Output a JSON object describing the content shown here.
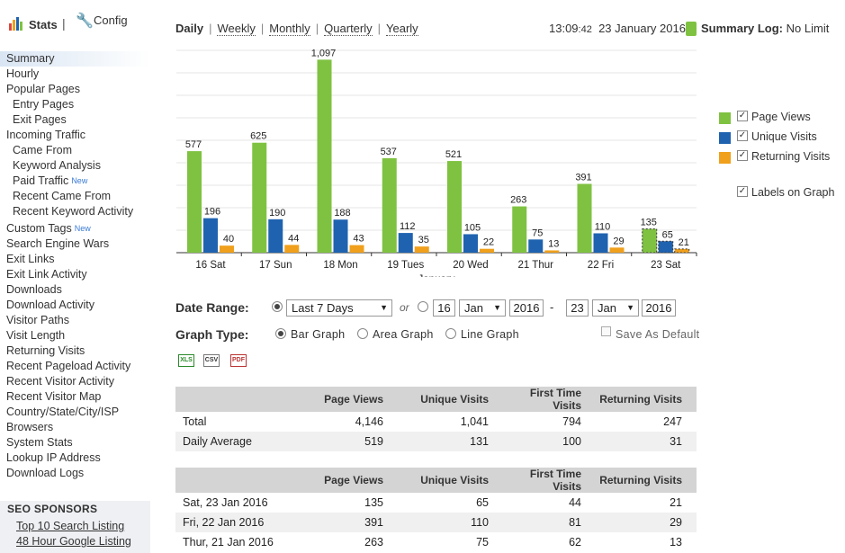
{
  "topbar": {
    "stats_label": "Stats",
    "separator": "|",
    "config_label": "Config"
  },
  "nav": [
    {
      "label": "Summary",
      "level": 0,
      "active": true
    },
    {
      "label": "Hourly",
      "level": 0
    },
    {
      "label": "Popular Pages",
      "level": 0
    },
    {
      "label": "Entry Pages",
      "level": 1
    },
    {
      "label": "Exit Pages",
      "level": 1
    },
    {
      "label": "Incoming Traffic",
      "level": 0
    },
    {
      "label": "Came From",
      "level": 1
    },
    {
      "label": "Keyword Analysis",
      "level": 1
    },
    {
      "label": "Paid Traffic",
      "level": 1,
      "badge": "New"
    },
    {
      "label": "Recent Came From",
      "level": 1
    },
    {
      "label": "Recent Keyword Activity",
      "level": 1
    },
    {
      "label": "Custom Tags",
      "level": 0,
      "badge": "New",
      "gap": true
    },
    {
      "label": "Search Engine Wars",
      "level": 0
    },
    {
      "label": "Exit Links",
      "level": 0
    },
    {
      "label": "Exit Link Activity",
      "level": 0
    },
    {
      "label": "Downloads",
      "level": 0
    },
    {
      "label": "Download Activity",
      "level": 0
    },
    {
      "label": "Visitor Paths",
      "level": 0
    },
    {
      "label": "Visit Length",
      "level": 0
    },
    {
      "label": "Returning Visits",
      "level": 0
    },
    {
      "label": "Recent Pageload Activity",
      "level": 0
    },
    {
      "label": "Recent Visitor Activity",
      "level": 0
    },
    {
      "label": "Recent Visitor Map",
      "level": 0
    },
    {
      "label": "Country/State/City/ISP",
      "level": 0
    },
    {
      "label": "Browsers",
      "level": 0
    },
    {
      "label": "System Stats",
      "level": 0
    },
    {
      "label": "Lookup IP Address",
      "level": 0
    },
    {
      "label": "Download Logs",
      "level": 0
    }
  ],
  "sponsors": {
    "title": "SEO SPONSORS",
    "links": [
      "Top 10 Search Listing",
      "48 Hour Google Listing"
    ]
  },
  "period_tabs": [
    {
      "label": "Daily",
      "current": true
    },
    {
      "label": "Weekly"
    },
    {
      "label": "Monthly"
    },
    {
      "label": "Quarterly"
    },
    {
      "label": "Yearly"
    }
  ],
  "clock": {
    "hm": "13:09",
    "sec": ":42",
    "date": "23 January 2016"
  },
  "summary_log": {
    "label": "Summary Log:",
    "value": "No Limit"
  },
  "colors": {
    "page_views": "#7fc241",
    "unique_visits": "#1f63b0",
    "returning_visits": "#f0a01c"
  },
  "chart_data": {
    "type": "bar",
    "xlabel": "January",
    "categories": [
      "16 Sat",
      "17 Sun",
      "18 Mon",
      "19 Tues",
      "20 Wed",
      "21 Thur",
      "22 Fri",
      "23 Sat"
    ],
    "series": [
      {
        "name": "Page Views",
        "values": [
          577,
          625,
          1097,
          537,
          521,
          263,
          391,
          135
        ]
      },
      {
        "name": "Unique Visits",
        "values": [
          196,
          190,
          188,
          112,
          105,
          75,
          110,
          65
        ]
      },
      {
        "name": "Returning Visits",
        "values": [
          40,
          44,
          43,
          35,
          22,
          13,
          29,
          21
        ]
      }
    ],
    "ylim": [
      0,
      1150
    ],
    "grid": true,
    "data_labels": true,
    "last_category_partial": true,
    "legend_placement": "right"
  },
  "legend": {
    "labels_on_graph": "Labels on Graph"
  },
  "date_range": {
    "label": "Date Range:",
    "preset": "Last 7 Days",
    "or": "or",
    "from_day": "16",
    "from_month": "Jan",
    "from_year": "2016",
    "dash": "-",
    "to_day": "23",
    "to_month": "Jan",
    "to_year": "2016"
  },
  "graph_type": {
    "label": "Graph Type:",
    "options": [
      "Bar Graph",
      "Area Graph",
      "Line Graph"
    ],
    "selected": "Bar Graph",
    "save_default": "Save As Default"
  },
  "exports": [
    "XLS",
    "CSV",
    "PDF"
  ],
  "table1": {
    "headers": [
      "",
      "Page Views",
      "Unique Visits",
      "First Time Visits",
      "Returning Visits"
    ],
    "rows": [
      [
        "Total",
        "4,146",
        "1,041",
        "794",
        "247"
      ],
      [
        "Daily Average",
        "519",
        "131",
        "100",
        "31"
      ]
    ]
  },
  "table2": {
    "headers": [
      "",
      "Page Views",
      "Unique Visits",
      "First Time Visits",
      "Returning Visits"
    ],
    "rows": [
      [
        "Sat, 23 Jan 2016",
        "135",
        "65",
        "44",
        "21"
      ],
      [
        "Fri, 22 Jan 2016",
        "391",
        "110",
        "81",
        "29"
      ],
      [
        "Thur, 21 Jan 2016",
        "263",
        "75",
        "62",
        "13"
      ]
    ]
  }
}
